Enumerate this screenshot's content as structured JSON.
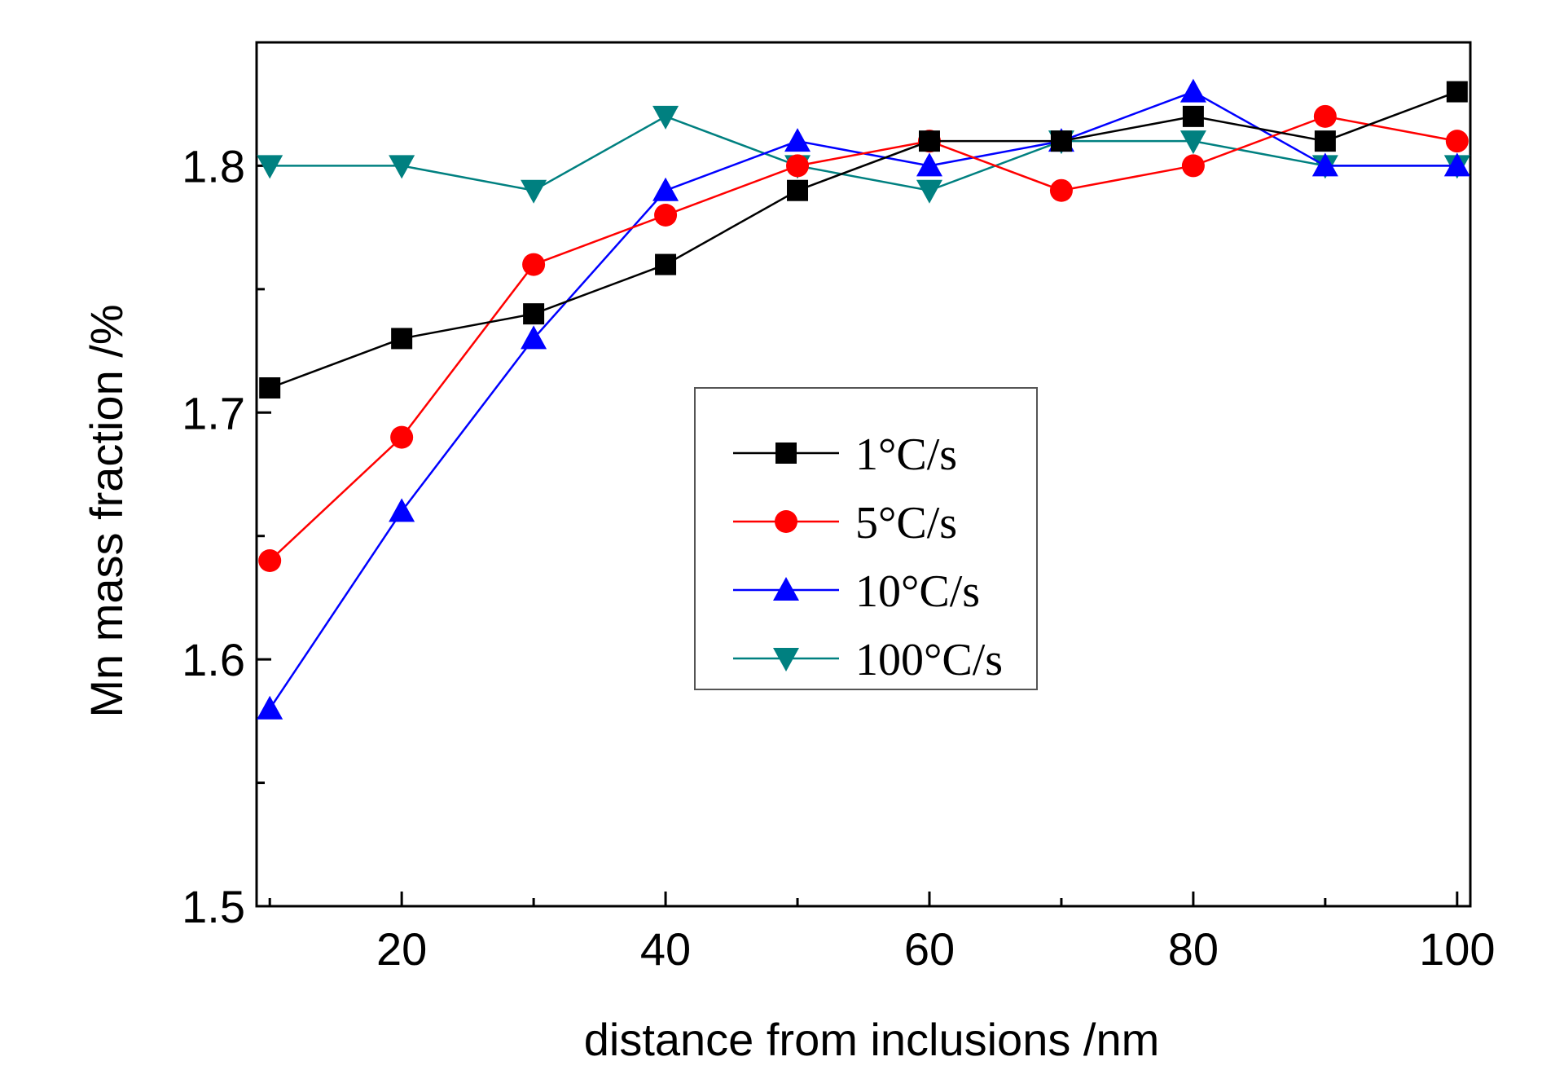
{
  "chart_data": {
    "type": "line",
    "title": "",
    "xlabel": "distance from inclusions /nm",
    "ylabel": "Mn mass fraction /%",
    "xlim": [
      9,
      101
    ],
    "ylim": [
      1.5,
      1.85
    ],
    "x_ticks": [
      20,
      40,
      60,
      80,
      100
    ],
    "x_tick_labels": [
      "20",
      "40",
      "60",
      "80",
      "100"
    ],
    "y_ticks": [
      1.5,
      1.6,
      1.7,
      1.8
    ],
    "y_tick_labels": [
      "1.5",
      "1.6",
      "1.7",
      "1.8"
    ],
    "grid": false,
    "legend_position": "center",
    "x": [
      10,
      20,
      30,
      40,
      50,
      60,
      70,
      80,
      90,
      100
    ],
    "series": [
      {
        "name": "1°C/s",
        "color": "#000000",
        "marker": "square",
        "values": [
          1.71,
          1.73,
          1.74,
          1.76,
          1.79,
          1.81,
          1.81,
          1.82,
          1.81,
          1.83
        ]
      },
      {
        "name": "5°C/s",
        "color": "#ff0000",
        "marker": "circle",
        "values": [
          1.64,
          1.69,
          1.76,
          1.78,
          1.8,
          1.81,
          1.79,
          1.8,
          1.82,
          1.81
        ]
      },
      {
        "name": "10°C/s",
        "color": "#0000ff",
        "marker": "triangle-up",
        "values": [
          1.58,
          1.66,
          1.73,
          1.79,
          1.81,
          1.8,
          1.81,
          1.83,
          1.8,
          1.8
        ]
      },
      {
        "name": "100°C/s",
        "color": "#008080",
        "marker": "triangle-down",
        "values": [
          1.8,
          1.8,
          1.79,
          1.82,
          1.8,
          1.79,
          1.81,
          1.81,
          1.8,
          1.8
        ]
      }
    ]
  }
}
